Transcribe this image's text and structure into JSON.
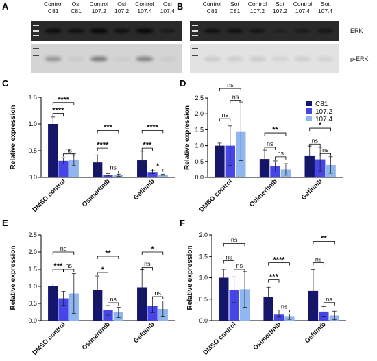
{
  "blots": [
    {
      "label": "A",
      "lanes": [
        {
          "top": "Control",
          "bottom": "C81"
        },
        {
          "top": "Osi",
          "bottom": "C81"
        },
        {
          "top": "Control",
          "bottom": "107.2"
        },
        {
          "top": "Osi",
          "bottom": "107.2"
        },
        {
          "top": "Control",
          "bottom": "107.4"
        },
        {
          "top": "Osi",
          "bottom": "107.4"
        }
      ],
      "erk_intensity": [
        0.8,
        0.75,
        0.85,
        0.75,
        0.85,
        0.65
      ],
      "perk_intensity": [
        0.35,
        0.05,
        0.5,
        0.05,
        0.45,
        0.05
      ]
    },
    {
      "label": "B",
      "lanes": [
        {
          "top": "Control",
          "bottom": "C81"
        },
        {
          "top": "Sot",
          "bottom": "C81"
        },
        {
          "top": "Control",
          "bottom": "107.2"
        },
        {
          "top": "Sot",
          "bottom": "107.2"
        },
        {
          "top": "Control",
          "bottom": "107.4"
        },
        {
          "top": "Sot",
          "bottom": "107.4"
        }
      ],
      "band_labels": [
        "ERK",
        "p-ERK"
      ],
      "erk_intensity": [
        0.75,
        0.75,
        0.7,
        0.6,
        0.65,
        0.7
      ],
      "perk_intensity": [
        0.12,
        0.1,
        0.12,
        0.08,
        0.1,
        0.08
      ]
    }
  ],
  "colors": {
    "C81": "#14166e",
    "107.2": "#4545e8",
    "107.4": "#8fb6ef"
  },
  "legend": {
    "entries": [
      "C81",
      "107.2",
      "107.4"
    ],
    "placement": "top-right of panel D"
  },
  "chart_data": [
    {
      "label": "C",
      "type": "bar",
      "ylabel": "Relative expression",
      "categories": [
        "DMSO control",
        "Osimertinib",
        "Gefitinib"
      ],
      "yticks": [
        "0.0",
        "0.5",
        "1.0",
        "1.5"
      ],
      "ylim": [
        0,
        1.5
      ],
      "series": [
        {
          "name": "C81",
          "values": [
            1.0,
            0.28,
            0.32
          ],
          "errors": [
            0.13,
            0.14,
            0.17
          ]
        },
        {
          "name": "107.2",
          "values": [
            0.31,
            0.05,
            0.1
          ],
          "errors": [
            0.06,
            0.02,
            0.03
          ]
        },
        {
          "name": "107.4",
          "values": [
            0.33,
            0.04,
            0.05
          ],
          "errors": [
            0.11,
            0.02,
            0.01
          ]
        }
      ],
      "brackets": [
        {
          "cat": 0,
          "from": 0,
          "to": 1,
          "level": 1.2,
          "text": "****"
        },
        {
          "cat": 0,
          "from": 0,
          "to": 2,
          "level": 1.4,
          "text": "****"
        },
        {
          "cat": 0,
          "from": 1,
          "to": 2,
          "level": 0.44,
          "text": "ns"
        },
        {
          "cat": 1,
          "from": 0,
          "to": 1,
          "level": 0.55,
          "text": "****"
        },
        {
          "cat": 1,
          "from": 0,
          "to": 2,
          "level": 0.88,
          "text": "***"
        },
        {
          "cat": 1,
          "from": 1,
          "to": 2,
          "level": 0.12,
          "text": "ns"
        },
        {
          "cat": 2,
          "from": 0,
          "to": 1,
          "level": 0.55,
          "text": "***"
        },
        {
          "cat": 2,
          "from": 0,
          "to": 2,
          "level": 0.88,
          "text": "****"
        },
        {
          "cat": 2,
          "from": 1,
          "to": 2,
          "level": 0.16,
          "text": "*"
        }
      ]
    },
    {
      "label": "D",
      "type": "bar",
      "ylabel": "Relative expression",
      "categories": [
        "DMSO control",
        "Osimertinib",
        "Gefitinib"
      ],
      "yticks": [
        "0.0",
        "0.5",
        "1.0",
        "1.5",
        "2.0",
        "2.5"
      ],
      "ylim": [
        0,
        2.5
      ],
      "series": [
        {
          "name": "C81",
          "values": [
            1.0,
            0.58,
            0.67
          ],
          "errors": [
            0.08,
            0.28,
            0.32
          ]
        },
        {
          "name": "107.2",
          "values": [
            1.0,
            0.36,
            0.57
          ],
          "errors": [
            0.62,
            0.16,
            0.38
          ]
        },
        {
          "name": "107.4",
          "values": [
            1.45,
            0.25,
            0.39
          ],
          "errors": [
            0.92,
            0.18,
            0.26
          ]
        }
      ],
      "brackets": [
        {
          "cat": 0,
          "from": 0,
          "to": 1,
          "level": 1.85,
          "text": "ns"
        },
        {
          "cat": 0,
          "from": 0,
          "to": 2,
          "level": 2.8,
          "text": "ns"
        },
        {
          "cat": 0,
          "from": 1,
          "to": 2,
          "level": 2.42,
          "text": "ns"
        },
        {
          "cat": 1,
          "from": 0,
          "to": 1,
          "level": 0.95,
          "text": "ns"
        },
        {
          "cat": 1,
          "from": 0,
          "to": 2,
          "level": 1.4,
          "text": "**"
        },
        {
          "cat": 1,
          "from": 1,
          "to": 2,
          "level": 0.65,
          "text": "ns"
        },
        {
          "cat": 2,
          "from": 0,
          "to": 1,
          "level": 1.05,
          "text": "ns"
        },
        {
          "cat": 2,
          "from": 0,
          "to": 2,
          "level": 1.55,
          "text": "*"
        },
        {
          "cat": 2,
          "from": 1,
          "to": 2,
          "level": 0.75,
          "text": "ns"
        }
      ]
    },
    {
      "label": "E",
      "type": "bar",
      "ylabel": "Relative expression",
      "categories": [
        "DMSO control",
        "Osimertinib",
        "Gefitinib"
      ],
      "yticks": [
        "0.0",
        "0.5",
        "1.0",
        "1.5",
        "2.0",
        "2.5"
      ],
      "ylim": [
        0,
        2.5
      ],
      "series": [
        {
          "name": "C81",
          "values": [
            1.0,
            0.9,
            0.97
          ],
          "errors": [
            0.07,
            0.4,
            0.52
          ]
        },
        {
          "name": "107.2",
          "values": [
            0.65,
            0.3,
            0.43
          ],
          "errors": [
            0.2,
            0.14,
            0.2
          ]
        },
        {
          "name": "107.4",
          "values": [
            0.79,
            0.24,
            0.34
          ],
          "errors": [
            0.58,
            0.15,
            0.23
          ]
        }
      ],
      "brackets": [
        {
          "cat": 0,
          "from": 0,
          "to": 1,
          "level": 1.5,
          "text": "***"
        },
        {
          "cat": 0,
          "from": 0,
          "to": 2,
          "level": 2.0,
          "text": "ns"
        },
        {
          "cat": 0,
          "from": 1,
          "to": 2,
          "level": 1.5,
          "text": "ns"
        },
        {
          "cat": 1,
          "from": 0,
          "to": 1,
          "level": 1.4,
          "text": "*"
        },
        {
          "cat": 1,
          "from": 0,
          "to": 2,
          "level": 1.88,
          "text": "**"
        },
        {
          "cat": 1,
          "from": 1,
          "to": 2,
          "level": 0.52,
          "text": "ns"
        },
        {
          "cat": 2,
          "from": 0,
          "to": 1,
          "level": 1.55,
          "text": "ns"
        },
        {
          "cat": 2,
          "from": 0,
          "to": 2,
          "level": 2.0,
          "text": "*"
        },
        {
          "cat": 2,
          "from": 1,
          "to": 2,
          "level": 0.7,
          "text": "ns"
        }
      ]
    },
    {
      "label": "F",
      "type": "bar",
      "ylabel": "Relative expression",
      "categories": [
        "DMSO control",
        "Osimertinib",
        "Gefitinib"
      ],
      "yticks": [
        "0.0",
        "0.5",
        "1.0",
        "1.5",
        "2.0"
      ],
      "ylim": [
        0,
        2.0
      ],
      "series": [
        {
          "name": "C81",
          "values": [
            1.0,
            0.56,
            0.69
          ],
          "errors": [
            0.2,
            0.22,
            0.5
          ]
        },
        {
          "name": "107.2",
          "values": [
            0.72,
            0.14,
            0.21
          ],
          "errors": [
            0.3,
            0.06,
            0.12
          ]
        },
        {
          "name": "107.4",
          "values": [
            0.73,
            0.09,
            0.12
          ],
          "errors": [
            0.42,
            0.06,
            0.1
          ]
        }
      ],
      "brackets": [
        {
          "cat": 0,
          "from": 0,
          "to": 1,
          "level": 1.4,
          "text": "ns"
        },
        {
          "cat": 0,
          "from": 0,
          "to": 2,
          "level": 1.8,
          "text": "ns"
        },
        {
          "cat": 0,
          "from": 1,
          "to": 2,
          "level": 1.2,
          "text": "ns"
        },
        {
          "cat": 1,
          "from": 0,
          "to": 1,
          "level": 0.95,
          "text": "***"
        },
        {
          "cat": 1,
          "from": 0,
          "to": 2,
          "level": 1.35,
          "text": "****"
        },
        {
          "cat": 1,
          "from": 1,
          "to": 2,
          "level": 0.25,
          "text": "ns"
        },
        {
          "cat": 2,
          "from": 0,
          "to": 1,
          "level": 1.35,
          "text": "ns"
        },
        {
          "cat": 2,
          "from": 0,
          "to": 2,
          "level": 1.85,
          "text": "**"
        },
        {
          "cat": 2,
          "from": 1,
          "to": 2,
          "level": 0.42,
          "text": "ns"
        }
      ]
    }
  ]
}
